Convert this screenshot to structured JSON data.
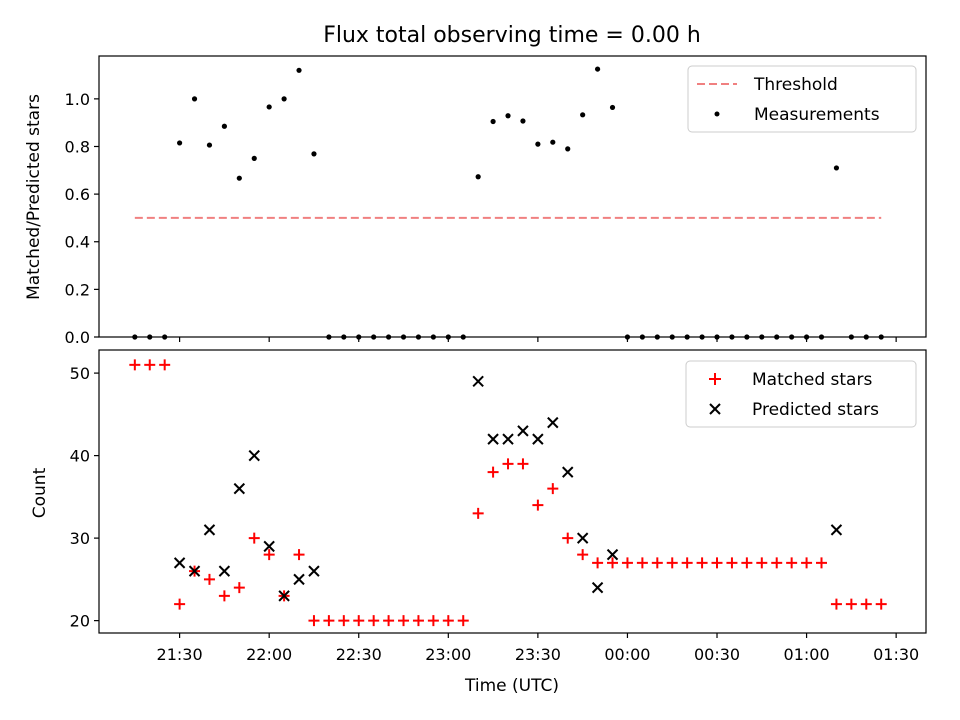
{
  "chart_data": {
    "type": "scatter",
    "title": "Flux total observing time = 0.00 h",
    "xlabel": "Time (UTC)",
    "xlim": [
      "21:03",
      "01:40"
    ],
    "xticks": [
      "21:30",
      "22:00",
      "22:30",
      "23:00",
      "23:30",
      "00:00",
      "00:30",
      "01:00",
      "01:30"
    ],
    "x": [
      "21:15",
      "21:20",
      "21:25",
      "21:30",
      "21:35",
      "21:40",
      "21:45",
      "21:50",
      "21:55",
      "22:00",
      "22:05",
      "22:10",
      "22:15",
      "22:20",
      "22:25",
      "22:30",
      "22:35",
      "22:40",
      "22:45",
      "22:50",
      "22:55",
      "23:00",
      "23:05",
      "23:10",
      "23:15",
      "23:20",
      "23:25",
      "23:30",
      "23:35",
      "23:40",
      "23:45",
      "23:50",
      "23:55",
      "00:00",
      "00:05",
      "00:10",
      "00:15",
      "00:20",
      "00:25",
      "00:30",
      "00:35",
      "00:40",
      "00:45",
      "00:50",
      "00:55",
      "01:00",
      "01:05",
      "01:10",
      "01:15",
      "01:20",
      "01:25"
    ],
    "top_panel": {
      "ylabel": "Matched/Predicted stars",
      "ylim": [
        0,
        1.18
      ],
      "yticks": [
        "0.0",
        "0.2",
        "0.4",
        "0.6",
        "0.8",
        "1.0"
      ],
      "threshold": {
        "name": "Threshold",
        "value": 0.5,
        "x_range": [
          "21:15",
          "01:25"
        ],
        "color": "#f08080"
      },
      "measurements": {
        "name": "Measurements",
        "color": "#000000",
        "values": [
          0,
          0,
          0,
          0.815,
          1.0,
          0.806,
          0.885,
          0.667,
          0.75,
          0.966,
          1.0,
          1.12,
          0.769,
          0,
          0,
          0,
          0,
          0,
          0,
          0,
          0,
          0,
          0,
          0.673,
          0.905,
          0.929,
          0.907,
          0.81,
          0.818,
          0.79,
          0.933,
          1.125,
          0.964,
          0,
          0,
          0,
          0,
          0,
          0,
          0,
          0,
          0,
          0,
          0,
          0,
          0,
          0,
          0.71,
          0,
          0,
          0
        ]
      }
    },
    "bottom_panel": {
      "ylabel": "Count",
      "ylim": [
        18.5,
        52.8
      ],
      "yticks": [
        "20",
        "30",
        "40",
        "50"
      ],
      "series": [
        {
          "name": "Matched stars",
          "marker": "plus",
          "color": "#ff0000",
          "values": [
            51,
            51,
            51,
            22,
            26,
            25,
            23,
            24,
            30,
            28,
            23,
            28,
            20,
            20,
            20,
            20,
            20,
            20,
            20,
            20,
            20,
            20,
            20,
            33,
            38,
            39,
            39,
            34,
            36,
            30,
            28,
            27,
            27,
            27,
            27,
            27,
            27,
            27,
            27,
            27,
            27,
            27,
            27,
            27,
            27,
            27,
            27,
            22,
            22,
            22,
            22
          ]
        },
        {
          "name": "Predicted stars",
          "marker": "x",
          "color": "#000000",
          "values": [
            null,
            null,
            null,
            27,
            26,
            31,
            26,
            36,
            40,
            29,
            23,
            25,
            26,
            null,
            null,
            null,
            null,
            null,
            null,
            null,
            null,
            null,
            null,
            49,
            42,
            42,
            43,
            42,
            44,
            38,
            30,
            24,
            28,
            null,
            null,
            null,
            null,
            null,
            null,
            null,
            null,
            null,
            null,
            null,
            null,
            null,
            null,
            31,
            null,
            null,
            null
          ]
        }
      ]
    },
    "legend_placement": "top-right",
    "grid": false
  }
}
